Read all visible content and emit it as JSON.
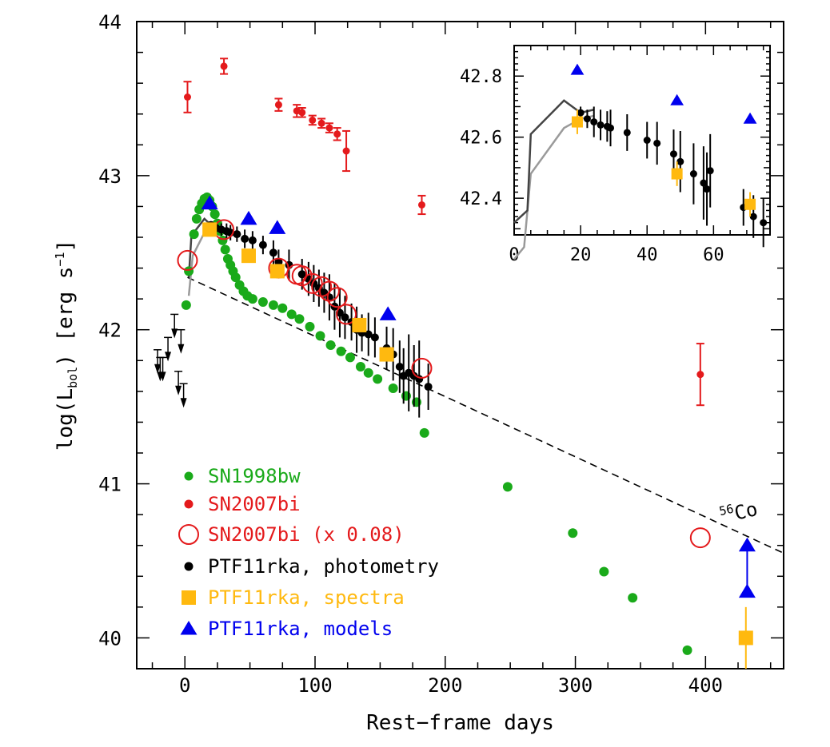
{
  "chart_data": [
    {
      "type": "scatter",
      "xlabel": "Rest−frame days",
      "ylabel_parts": [
        "log(L",
        "bol",
        ") [erg s",
        "−1",
        "]"
      ],
      "xlim": [
        -37,
        460
      ],
      "ylim": [
        39.8,
        44.0
      ],
      "xticks": [
        0,
        100,
        200,
        300,
        400
      ],
      "xtick_labels": [
        "0",
        "100",
        "200",
        "300",
        "400"
      ],
      "yticks": [
        40,
        41,
        42,
        43,
        44
      ],
      "ytick_labels": [
        "40",
        "41",
        "42",
        "43",
        "44"
      ],
      "legend": {
        "placement": "bottom-left"
      },
      "annotation": {
        "superscript": "56",
        "text": "Co"
      },
      "colors": {
        "green": "#1aaa1a",
        "red": "#e41a1c",
        "black": "#000000",
        "orange": "#ffb90f",
        "blue": "#0000ee",
        "gray": "#9a9a9a",
        "darkgray": "#444444"
      },
      "series": [
        {
          "name": "SN1998bw",
          "marker": "small-filled-circle",
          "color": "green",
          "points": [
            [
              1,
              42.16
            ],
            [
              3,
              42.38
            ],
            [
              7,
              42.62
            ],
            [
              9,
              42.72
            ],
            [
              11,
              42.78
            ],
            [
              13,
              42.82
            ],
            [
              15,
              42.85
            ],
            [
              17,
              42.86
            ],
            [
              19,
              42.84
            ],
            [
              21,
              42.8
            ],
            [
              23,
              42.75
            ],
            [
              25,
              42.69
            ],
            [
              27,
              42.64
            ],
            [
              29,
              42.58
            ],
            [
              31,
              42.52
            ],
            [
              33,
              42.46
            ],
            [
              35,
              42.42
            ],
            [
              37,
              42.38
            ],
            [
              39,
              42.34
            ],
            [
              42,
              42.29
            ],
            [
              45,
              42.25
            ],
            [
              48,
              42.22
            ],
            [
              52,
              42.2
            ],
            [
              60,
              42.18
            ],
            [
              68,
              42.16
            ],
            [
              75,
              42.14
            ],
            [
              82,
              42.1
            ],
            [
              88,
              42.07
            ],
            [
              96,
              42.02
            ],
            [
              104,
              41.96
            ],
            [
              112,
              41.9
            ],
            [
              120,
              41.86
            ],
            [
              127,
              41.82
            ],
            [
              135,
              41.76
            ],
            [
              141,
              41.72
            ],
            [
              148,
              41.68
            ],
            [
              160,
              41.62
            ],
            [
              170,
              41.57
            ],
            [
              178,
              41.53
            ],
            [
              184,
              41.33
            ],
            [
              248,
              40.98
            ],
            [
              298,
              40.68
            ],
            [
              322,
              40.43
            ],
            [
              344,
              40.26
            ],
            [
              386,
              39.92
            ]
          ]
        },
        {
          "name": "SN2007bi",
          "marker": "small-filled-circle-errorbar",
          "color": "red",
          "points": [
            [
              2,
              43.51,
              0.1
            ],
            [
              30,
              43.71,
              0.05
            ],
            [
              72,
              43.46,
              0.04
            ],
            [
              86,
              43.42,
              0.04
            ],
            [
              90,
              43.41,
              0.03
            ],
            [
              98,
              43.36,
              0.03
            ],
            [
              105,
              43.34,
              0.03
            ],
            [
              111,
              43.31,
              0.03
            ],
            [
              117,
              43.27,
              0.04
            ],
            [
              124,
              43.16,
              0.13
            ],
            [
              182,
              42.81,
              0.06
            ],
            [
              396,
              41.71,
              0.2
            ]
          ]
        },
        {
          "name": "SN2007bi (x 0.08)",
          "marker": "open-circle",
          "color": "red",
          "points": [
            [
              2,
              42.45
            ],
            [
              30,
              42.65
            ],
            [
              72,
              42.4
            ],
            [
              86,
              42.36
            ],
            [
              90,
              42.35
            ],
            [
              98,
              42.3
            ],
            [
              105,
              42.28
            ],
            [
              111,
              42.25
            ],
            [
              117,
              42.21
            ],
            [
              124,
              42.1
            ],
            [
              182,
              41.75
            ],
            [
              396,
              40.65
            ]
          ]
        },
        {
          "name": "PTF11rka, photometry",
          "marker": "small-filled-circle-errorbar",
          "color": "black",
          "points": [
            [
              20,
              42.68,
              0.02
            ],
            [
              24,
              42.66,
              0.03
            ],
            [
              28,
              42.65,
              0.04
            ],
            [
              32,
              42.64,
              0.05
            ],
            [
              35,
              42.63,
              0.05
            ],
            [
              40,
              42.62,
              0.05
            ],
            [
              46,
              42.59,
              0.06
            ],
            [
              52,
              42.58,
              0.06
            ],
            [
              60,
              42.55,
              0.06
            ],
            [
              68,
              42.5,
              0.08
            ],
            [
              72,
              42.44,
              0.08
            ],
            [
              80,
              42.42,
              0.1
            ],
            [
              90,
              42.36,
              0.1
            ],
            [
              95,
              42.33,
              0.11
            ],
            [
              99,
              42.3,
              0.12
            ],
            [
              103,
              42.27,
              0.12
            ],
            [
              107,
              42.24,
              0.13
            ],
            [
              111,
              42.21,
              0.15
            ],
            [
              115,
              42.15,
              0.15
            ],
            [
              119,
              42.11,
              0.16
            ],
            [
              123,
              42.08,
              0.14
            ],
            [
              128,
              42.05,
              0.12
            ],
            [
              132,
              42.0,
              0.15
            ],
            [
              136,
              41.98,
              0.12
            ],
            [
              141,
              41.97,
              0.14
            ],
            [
              146,
              41.95,
              0.13
            ],
            [
              155,
              41.88,
              0.14
            ],
            [
              160,
              41.84,
              0.17
            ],
            [
              165,
              41.76,
              0.17
            ],
            [
              168,
              41.7,
              0.18
            ],
            [
              172,
              41.72,
              0.25
            ],
            [
              176,
              41.7,
              0.2
            ],
            [
              180,
              41.68,
              0.25
            ],
            [
              187,
              41.63,
              0.15
            ]
          ]
        },
        {
          "name": "PTF11rka, spectra",
          "marker": "filled-square",
          "color": "orange",
          "points": [
            [
              19,
              42.65,
              0.04
            ],
            [
              49,
              42.48,
              0.04
            ],
            [
              71,
              42.38,
              0.04
            ],
            [
              134,
              42.03,
              0.03
            ],
            [
              155,
              41.84,
              0.03
            ],
            [
              431,
              40.0,
              0.2
            ]
          ]
        },
        {
          "name": "PTF11rka, models",
          "marker": "filled-triangle",
          "color": "blue",
          "points": [
            [
              19,
              42.82
            ],
            [
              49,
              42.72
            ],
            [
              71,
              42.66
            ],
            [
              156,
              42.1
            ],
            [
              432,
              40.6
            ],
            [
              432,
              40.3
            ]
          ]
        }
      ],
      "upper_limits": [
        [
          -21,
          41.87
        ],
        [
          -19,
          41.82
        ],
        [
          -17,
          41.82
        ],
        [
          -13,
          41.95
        ],
        [
          -8,
          42.1
        ],
        [
          -5,
          41.73
        ],
        [
          -3,
          42.0
        ],
        [
          -1,
          41.65
        ]
      ],
      "lines": {
        "co56_decay": {
          "style": "dashed",
          "color": "black",
          "points": [
            [
              2,
              42.34
            ],
            [
              460,
              40.55
            ]
          ]
        },
        "model_curve_dark": {
          "style": "solid",
          "color": "darkgray",
          "points": [
            [
              3,
              42.34
            ],
            [
              5,
              42.61
            ],
            [
              15,
              42.72
            ],
            [
              20,
              42.68
            ],
            [
              24,
              42.69
            ]
          ]
        },
        "model_curve_light": {
          "style": "solid",
          "color": "gray",
          "points": [
            [
              3,
              42.22
            ],
            [
              6,
              42.48
            ],
            [
              15,
              42.63
            ],
            [
              20,
              42.66
            ],
            [
              24,
              42.67
            ]
          ]
        }
      }
    },
    {
      "type": "scatter",
      "role": "inset",
      "xlim": [
        0,
        77
      ],
      "ylim": [
        42.28,
        42.9
      ],
      "xticks": [
        0,
        20,
        40,
        60
      ],
      "xtick_labels": [
        "0",
        "20",
        "40",
        "60"
      ],
      "yticks": [
        42.4,
        42.6,
        42.8
      ],
      "ytick_labels": [
        "42.4",
        "42.6",
        "42.8"
      ],
      "photometry": [
        [
          20,
          42.68,
          0.02
        ],
        [
          22,
          42.66,
          0.03
        ],
        [
          24,
          42.65,
          0.05
        ],
        [
          26,
          42.64,
          0.05
        ],
        [
          28,
          42.635,
          0.05
        ],
        [
          29,
          42.63,
          0.06
        ],
        [
          34,
          42.615,
          0.06
        ],
        [
          40,
          42.59,
          0.06
        ],
        [
          43,
          42.58,
          0.07
        ],
        [
          48,
          42.545,
          0.08
        ],
        [
          50,
          42.52,
          0.1
        ],
        [
          54,
          42.48,
          0.1
        ],
        [
          57,
          42.45,
          0.12
        ],
        [
          58,
          42.43,
          0.12
        ],
        [
          59,
          42.49,
          0.12
        ],
        [
          69,
          42.37,
          0.06
        ],
        [
          72,
          42.34,
          0.07
        ],
        [
          75,
          42.32,
          0.08
        ]
      ],
      "spectra": [
        [
          19,
          42.65,
          0.04
        ],
        [
          49,
          42.48,
          0.04
        ],
        [
          71,
          42.38,
          0.04
        ]
      ],
      "models": [
        [
          19,
          42.82
        ],
        [
          49,
          42.72
        ],
        [
          71,
          42.66
        ]
      ],
      "model_curve_dark": [
        [
          0,
          42.32
        ],
        [
          4,
          42.36
        ],
        [
          5,
          42.61
        ],
        [
          15,
          42.72
        ],
        [
          20,
          42.68
        ],
        [
          24,
          42.69
        ]
      ],
      "model_curve_light": [
        [
          0,
          42.2
        ],
        [
          3,
          42.24
        ],
        [
          5,
          42.48
        ],
        [
          15,
          42.63
        ],
        [
          20,
          42.66
        ],
        [
          24,
          42.67
        ]
      ]
    }
  ]
}
